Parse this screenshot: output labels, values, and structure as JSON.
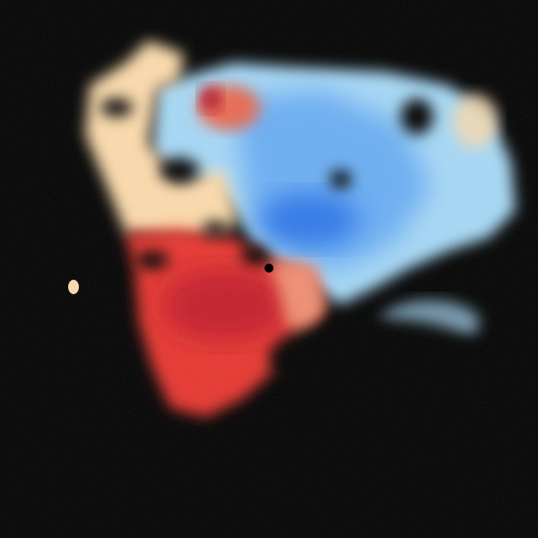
{
  "image": {
    "kind": "radar-velocity-field",
    "background": "#000000",
    "colors": {
      "deep_red": "#b2182b",
      "red": "#e8342e",
      "light_red": "#f4a582",
      "peach": "#fddbac",
      "light_blue": "#a6d9f7",
      "blue": "#6aaef5",
      "deep_blue": "#2166e0",
      "radar_center": "#000000"
    }
  }
}
